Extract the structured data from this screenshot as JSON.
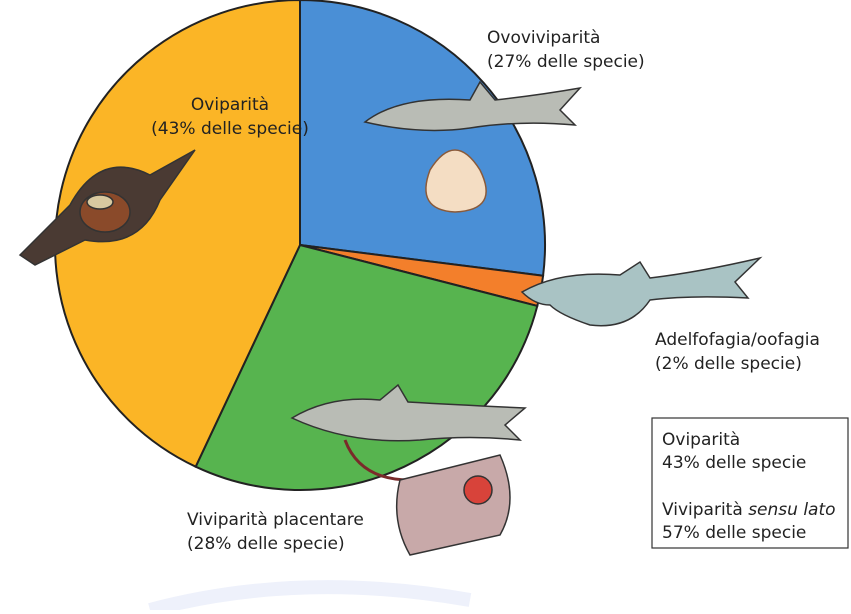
{
  "chart_data": {
    "type": "pie",
    "categories": [
      "Ovoviviparità",
      "Adelfofagia/oofagia",
      "Viviparità placentare",
      "Oviparità"
    ],
    "values": [
      27,
      2,
      28,
      43
    ],
    "value_labels": [
      "(27% delle specie)",
      "(2% delle specie)",
      "(28% delle specie)",
      "(43% delle specie)"
    ],
    "colors": [
      "#4a8fd6",
      "#f37f2b",
      "#57b44f",
      "#fbb526"
    ]
  },
  "summary": [
    {
      "name": "Oviparità",
      "text": "43% delle specie"
    },
    {
      "name": "Viviparità",
      "name_italic": "sensu lato",
      "text": "57% delle specie"
    }
  ]
}
